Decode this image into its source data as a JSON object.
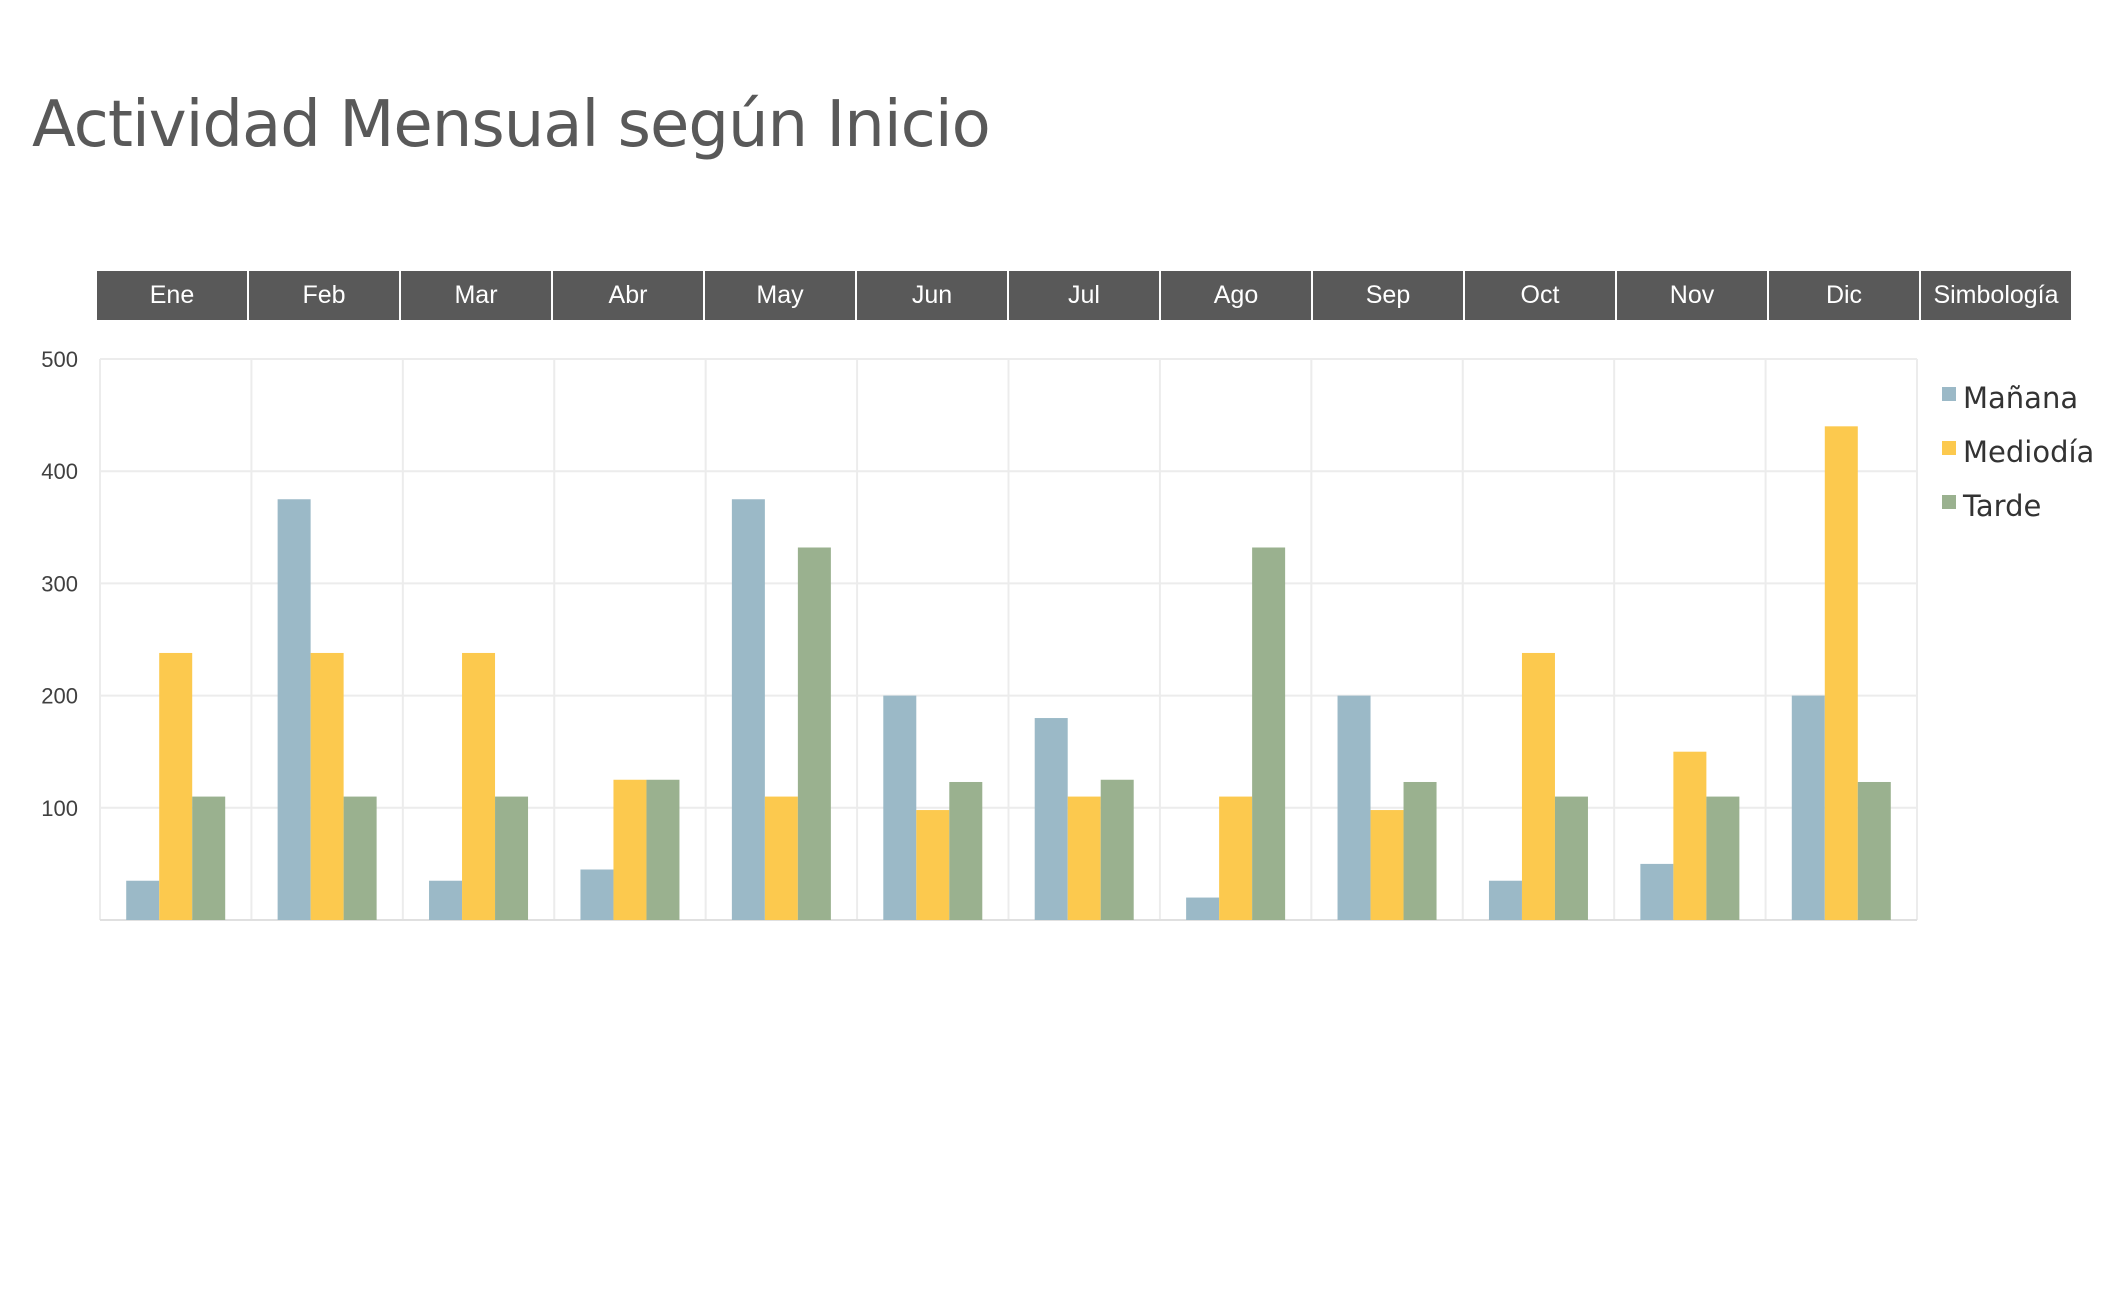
{
  "chart_data": {
    "type": "bar",
    "title": "Actividad Mensual según Inicio",
    "header_last": "Simbología",
    "categories": [
      "Ene",
      "Feb",
      "Mar",
      "Abr",
      "May",
      "Jun",
      "Jul",
      "Ago",
      "Sep",
      "Oct",
      "Nov",
      "Dic"
    ],
    "series": [
      {
        "name": "Mañana",
        "color": "#9bb9c7",
        "values": [
          35,
          375,
          35,
          45,
          375,
          200,
          180,
          20,
          200,
          35,
          50,
          200
        ]
      },
      {
        "name": "Mediodía",
        "color": "#fcc94e",
        "values": [
          238,
          238,
          238,
          125,
          110,
          98,
          110,
          110,
          98,
          238,
          150,
          440
        ]
      },
      {
        "name": "Tarde",
        "color": "#9ab18f",
        "values": [
          110,
          110,
          110,
          125,
          332,
          123,
          125,
          332,
          123,
          110,
          110,
          123
        ]
      }
    ],
    "yticks": [
      100,
      200,
      300,
      400,
      500
    ],
    "ylim": [
      0,
      500
    ],
    "grid": true,
    "legend": "right"
  }
}
